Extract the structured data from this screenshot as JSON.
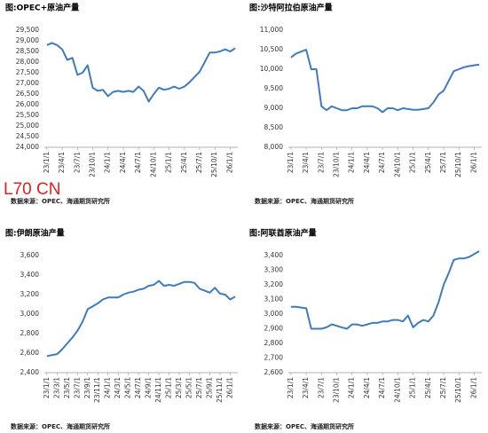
{
  "watermark": "L70 CN",
  "chart_data": [
    {
      "type": "line",
      "title": "图:OPEC+原油产量",
      "source": "数据来源：OPEC、海通期货研究所",
      "categories": [
        "23/1/1",
        null,
        null,
        "23/4/1",
        null,
        null,
        "23/7/1",
        null,
        null,
        "23/10/1",
        null,
        null,
        "24/1/1",
        null,
        null,
        "24/4/1",
        null,
        null,
        "24/7/1",
        null,
        null,
        "24/10/1",
        null,
        null,
        "25/1/1",
        null,
        null,
        "25/4/1",
        null,
        null,
        "25/7/1",
        null,
        null,
        "25/10/1",
        null,
        null,
        "26/1/1",
        null
      ],
      "values": [
        28800,
        28900,
        28800,
        28600,
        28100,
        28200,
        27400,
        27500,
        27850,
        26800,
        26650,
        26700,
        26400,
        26600,
        26650,
        26600,
        26650,
        26600,
        26850,
        26650,
        26150,
        26500,
        26800,
        26700,
        26750,
        26850,
        26750,
        26850,
        27050,
        27300,
        27550,
        28000,
        28450,
        28450,
        28500,
        28600,
        28500,
        28650
      ],
      "color": "#3f7bbd",
      "ylim": [
        24000,
        29500
      ],
      "yticks": [
        {
          "value": 24000,
          "label": "24,000"
        },
        {
          "value": 24500,
          "label": "24,500"
        },
        {
          "value": 25000,
          "label": "25,000"
        },
        {
          "value": 25500,
          "label": "25,500"
        },
        {
          "value": 26000,
          "label": "26,000"
        },
        {
          "value": 26500,
          "label": "26,500"
        },
        {
          "value": 27000,
          "label": "27,000"
        },
        {
          "value": 27500,
          "label": "27,500"
        },
        {
          "value": 28000,
          "label": "28,000"
        },
        {
          "value": 28500,
          "label": "28,500"
        },
        {
          "value": 29000,
          "label": "29,000"
        },
        {
          "value": 29500,
          "label": "29,500"
        }
      ]
    },
    {
      "type": "line",
      "title": "图:沙特阿拉伯原油产量",
      "source": "数据来源：OPEC、海通期货研究所",
      "categories": [
        "23/1/1",
        null,
        null,
        "23/4/1",
        null,
        null,
        "23/7/1",
        null,
        null,
        "23/10/1",
        null,
        null,
        "24/1/1",
        null,
        null,
        "24/4/1",
        null,
        null,
        "24/7/1",
        null,
        null,
        "24/10/1",
        null,
        null,
        "25/1/1",
        null,
        null,
        "25/4/1",
        null,
        null,
        "25/7/1",
        null,
        null,
        "25/10/1",
        null,
        null,
        "26/1/1",
        null
      ],
      "values": [
        10300,
        10400,
        10450,
        10500,
        10000,
        10000,
        9050,
        8950,
        9050,
        9000,
        8950,
        8950,
        9000,
        9000,
        9050,
        9050,
        9050,
        9000,
        8900,
        9000,
        9000,
        8950,
        9000,
        8980,
        8960,
        8960,
        8980,
        9000,
        9150,
        9350,
        9450,
        9700,
        9950,
        10000,
        10050,
        10080,
        10100,
        10120
      ],
      "color": "#3f7bbd",
      "ylim": [
        8000,
        11000
      ],
      "yticks": [
        {
          "value": 8000,
          "label": "8,000"
        },
        {
          "value": 8500,
          "label": "8,500"
        },
        {
          "value": 9000,
          "label": "9,000"
        },
        {
          "value": 9500,
          "label": "9,500"
        },
        {
          "value": 10000,
          "label": "10,000"
        },
        {
          "value": 10500,
          "label": "10,500"
        },
        {
          "value": 11000,
          "label": "11,000"
        }
      ]
    },
    {
      "type": "line",
      "title": "图:伊朗原油产量",
      "source": "数据来源：OPEC、海通期货研究所",
      "categories": [
        "23/1/1",
        null,
        "23/3/1",
        null,
        "23/5/1",
        null,
        "23/7/1",
        null,
        "23/9/1",
        null,
        "23/11/1",
        null,
        "24/1/1",
        null,
        "24/3/1",
        null,
        "24/5/1",
        null,
        "24/7/1",
        null,
        "24/9/1",
        null,
        "24/11/1",
        null,
        "25/1/1",
        null,
        "25/3/1",
        null,
        "25/5/1",
        null,
        "25/7/1",
        null,
        "25/9/1",
        null,
        "25/11/1",
        null,
        "26/1/1",
        null
      ],
      "values": [
        2570,
        2580,
        2590,
        2640,
        2700,
        2760,
        2830,
        2920,
        3050,
        3080,
        3110,
        3150,
        3170,
        3170,
        3170,
        3200,
        3220,
        3230,
        3250,
        3260,
        3290,
        3300,
        3340,
        3290,
        3300,
        3290,
        3310,
        3330,
        3330,
        3320,
        3260,
        3240,
        3220,
        3270,
        3210,
        3200,
        3150,
        3180
      ],
      "color": "#3f7bbd",
      "ylim": [
        2400,
        3600
      ],
      "yticks": [
        {
          "value": 2400,
          "label": "2,400"
        },
        {
          "value": 2600,
          "label": "2,600"
        },
        {
          "value": 2800,
          "label": "2,800"
        },
        {
          "value": 3000,
          "label": "3,000"
        },
        {
          "value": 3200,
          "label": "3,200"
        },
        {
          "value": 3400,
          "label": "3,400"
        },
        {
          "value": 3600,
          "label": "3,600"
        }
      ]
    },
    {
      "type": "line",
      "title": "图:阿联酋原油产量",
      "source": "数据来源：OPEC、海通期货研究所",
      "categories": [
        "23/1/1",
        null,
        null,
        "23/4/1",
        null,
        null,
        "23/7/1",
        null,
        null,
        "23/10/1",
        null,
        null,
        "24/1/1",
        null,
        null,
        "24/4/1",
        null,
        null,
        "24/7/1",
        null,
        null,
        "24/10/1",
        null,
        null,
        "25/1/1",
        null,
        null,
        "25/4/1",
        null,
        null,
        "25/7/1",
        null,
        null,
        "25/10/1",
        null,
        null,
        "26/1/1",
        null
      ],
      "values": [
        3050,
        3050,
        3045,
        3040,
        2900,
        2900,
        2900,
        2910,
        2930,
        2920,
        2910,
        2900,
        2930,
        2930,
        2920,
        2930,
        2940,
        2940,
        2950,
        2950,
        2960,
        2960,
        2950,
        2990,
        2910,
        2940,
        2960,
        2950,
        2990,
        3080,
        3200,
        3280,
        3370,
        3380,
        3380,
        3390,
        3410,
        3430
      ],
      "color": "#3f7bbd",
      "ylim": [
        2600,
        3400
      ],
      "yticks": [
        {
          "value": 2600,
          "label": "2,600"
        },
        {
          "value": 2700,
          "label": "2,700"
        },
        {
          "value": 2800,
          "label": "2,800"
        },
        {
          "value": 2900,
          "label": "2,900"
        },
        {
          "value": 3000,
          "label": "3,000"
        },
        {
          "value": 3100,
          "label": "3,100"
        },
        {
          "value": 3200,
          "label": "3,200"
        },
        {
          "value": 3300,
          "label": "3,300"
        },
        {
          "value": 3400,
          "label": "3,400"
        }
      ]
    }
  ]
}
